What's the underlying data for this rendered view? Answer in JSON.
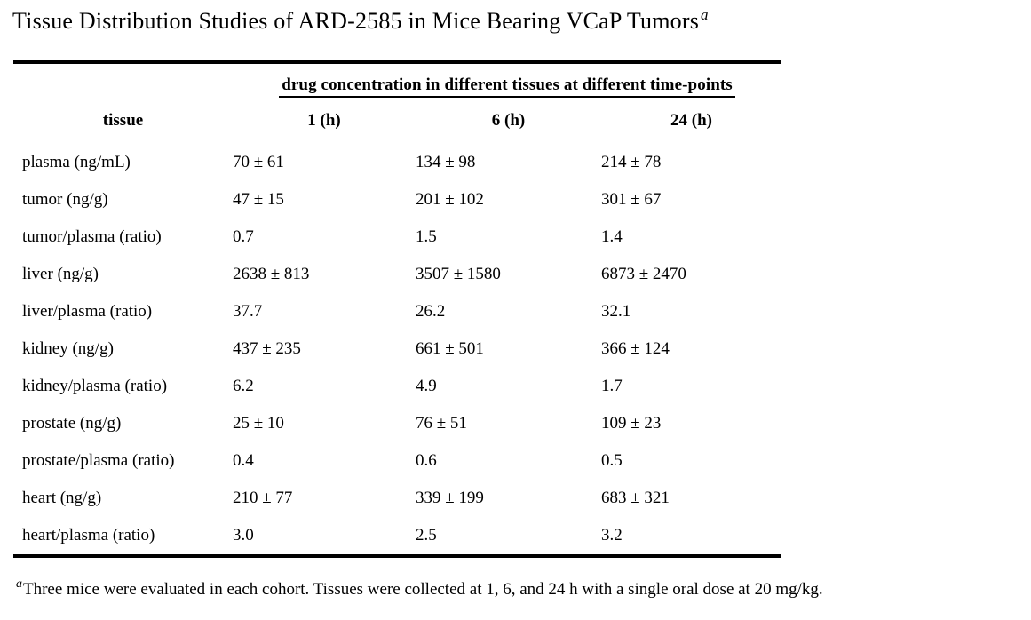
{
  "title": {
    "text": "Tissue Distribution Studies of ARD-2585 in Mice Bearing VCaP Tumors",
    "superscript": "a"
  },
  "table": {
    "span_header": "drug concentration in different tissues at different time-points",
    "columns": [
      "tissue",
      "1 (h)",
      "6 (h)",
      "24 (h)"
    ],
    "rows": [
      {
        "cells": [
          "plasma (ng/mL)",
          "70 ± 61",
          "134 ± 98",
          "214 ± 78"
        ]
      },
      {
        "cells": [
          "tumor (ng/g)",
          "47 ± 15",
          "201 ± 102",
          "301 ± 67"
        ]
      },
      {
        "cells": [
          "tumor/plasma (ratio)",
          "0.7",
          "1.5",
          "1.4"
        ]
      },
      {
        "cells": [
          "liver (ng/g)",
          "2638 ± 813",
          "3507 ± 1580",
          "6873 ± 2470"
        ]
      },
      {
        "cells": [
          "liver/plasma (ratio)",
          "37.7",
          "26.2",
          "32.1"
        ]
      },
      {
        "cells": [
          "kidney (ng/g)",
          "437 ± 235",
          "661 ± 501",
          "366 ± 124"
        ]
      },
      {
        "cells": [
          "kidney/plasma (ratio)",
          "6.2",
          "4.9",
          "1.7"
        ]
      },
      {
        "cells": [
          "prostate (ng/g)",
          "25 ± 10",
          "76 ± 51",
          "109 ± 23"
        ]
      },
      {
        "cells": [
          "prostate/plasma (ratio)",
          "0.4",
          "0.6",
          "0.5"
        ]
      },
      {
        "cells": [
          "heart (ng/g)",
          "210 ± 77",
          "339 ± 199",
          "683 ± 321"
        ]
      },
      {
        "cells": [
          "heart/plasma (ratio)",
          "3.0",
          "2.5",
          "3.2"
        ]
      }
    ]
  },
  "footnote": {
    "marker": "a",
    "text": "Three mice were evaluated in each cohort. Tissues were collected at 1, 6, and 24 h with a single oral dose at 20 mg/kg."
  },
  "colors": {
    "text": "#000000",
    "background": "#ffffff",
    "rule": "#000000"
  }
}
